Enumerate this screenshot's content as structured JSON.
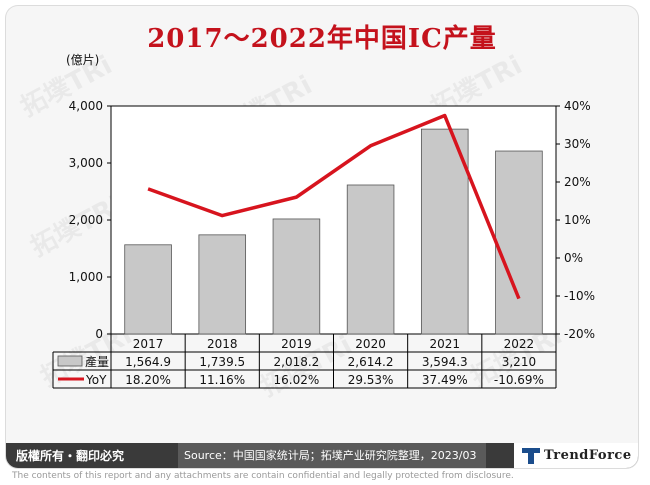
{
  "title": "2017～2022年中国IC产量",
  "chart_data": {
    "type": "bar",
    "categories": [
      "2017",
      "2018",
      "2019",
      "2020",
      "2021",
      "2022"
    ],
    "series": [
      {
        "name": "產量",
        "type": "bar",
        "axis": "left",
        "values": [
          1564.9,
          1739.5,
          2018.2,
          2614.2,
          3594.3,
          3210
        ],
        "labels": [
          "1,564.9",
          "1,739.5",
          "2,018.2",
          "2,614.2",
          "3,594.3",
          "3,210"
        ]
      },
      {
        "name": "YoY",
        "type": "line",
        "axis": "right",
        "values": [
          18.2,
          11.16,
          16.02,
          29.53,
          37.49,
          -10.69
        ],
        "labels": [
          "18.20%",
          "11.16%",
          "16.02%",
          "29.53%",
          "37.49%",
          "-10.69%"
        ]
      }
    ],
    "ylabel": "(億片)",
    "ylim": [
      0,
      4000
    ],
    "yticks": [
      "0",
      "1,000",
      "2,000",
      "3,000",
      "4,000"
    ],
    "y2lim": [
      -20,
      40
    ],
    "y2ticks": [
      "-20%",
      "-10%",
      "0%",
      "10%",
      "20%",
      "30%",
      "40%"
    ],
    "legend_position": "data-table",
    "colors": {
      "bar": "#c8c8c8",
      "line": "#d7141e"
    }
  },
  "footer": {
    "rights": "版權所有・翻印必究",
    "source": "Source：中国国家统计局；拓墣产业研究院整理，2023/03",
    "brand": "TrendForce"
  },
  "disclaimer": "The contents of this report and any attachments are contain confidential and legally protected from disclosure."
}
